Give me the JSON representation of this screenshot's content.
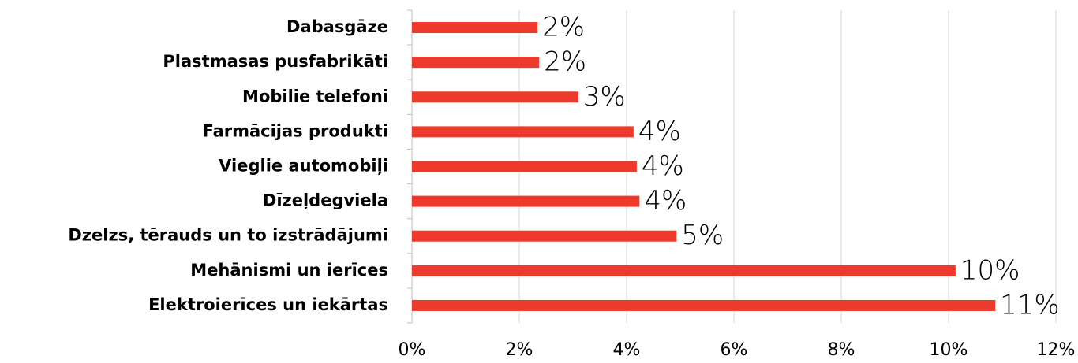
{
  "chart_data": {
    "type": "bar",
    "orientation": "horizontal",
    "categories": [
      "Dabasgāze",
      "Plastmasas pusfabrikāti",
      "Mobilie telefoni",
      "Farmācijas produkti",
      "Vieglie automobiļi",
      "Dīzeļdegviela",
      "Dzelzs, tērauds un to izstrādājumi",
      "Mehānismi un ierīces",
      "Elektroierīces un iekārtas"
    ],
    "values": [
      2.34,
      2.37,
      3.1,
      4.13,
      4.19,
      4.24,
      4.93,
      10.13,
      10.87
    ],
    "value_labels": [
      "2%",
      "2%",
      "3%",
      "4%",
      "4%",
      "4%",
      "5%",
      "10%",
      "11%"
    ],
    "color": "#ee3a2c",
    "xlim": [
      0,
      12
    ],
    "xticks": [
      {
        "value": 0,
        "label": "0%"
      },
      {
        "value": 2,
        "label": "2%"
      },
      {
        "value": 4,
        "label": "4%"
      },
      {
        "value": 6,
        "label": "6%"
      },
      {
        "value": 8,
        "label": "8%"
      },
      {
        "value": 10,
        "label": "10%"
      },
      {
        "value": 12,
        "label": "12%"
      }
    ],
    "grid": true
  }
}
